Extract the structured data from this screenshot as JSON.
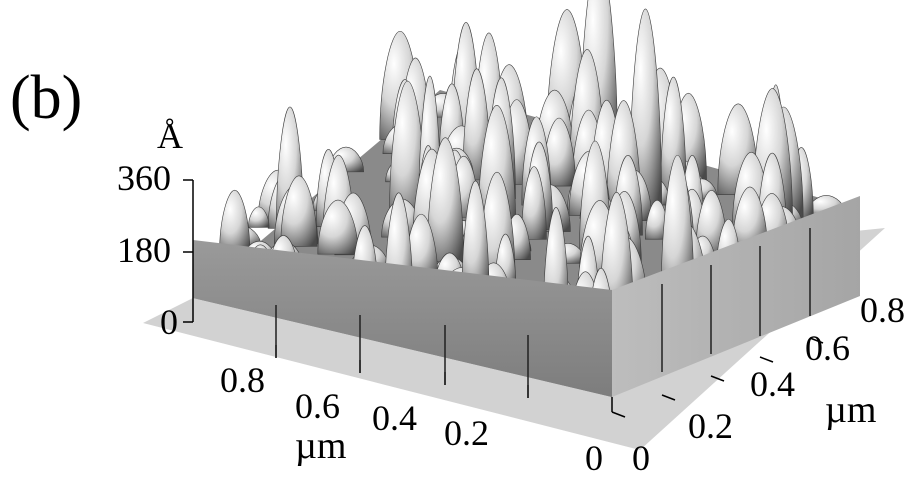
{
  "panel_label": "(b)",
  "chart_data": {
    "type": "surface",
    "z_axis": {
      "unit": "Å",
      "ticks": [
        "0",
        "180",
        "360"
      ],
      "range": [
        0,
        360
      ]
    },
    "x_axis": {
      "unit": "µm",
      "ticks": [
        "0.8",
        "0.6",
        "0.4",
        "0.2",
        "0"
      ],
      "range": [
        0,
        1
      ]
    },
    "y_axis": {
      "unit": "µm",
      "ticks": [
        "0",
        "0.2",
        "0.4",
        "0.6",
        "0.8"
      ],
      "range": [
        0,
        1
      ]
    },
    "grid": false,
    "colors": {
      "surface_light": "#f2f2f2",
      "surface_dark": "#3a3a3a",
      "wall": "#8f8f8f",
      "floor": "#d0d0d0"
    }
  }
}
